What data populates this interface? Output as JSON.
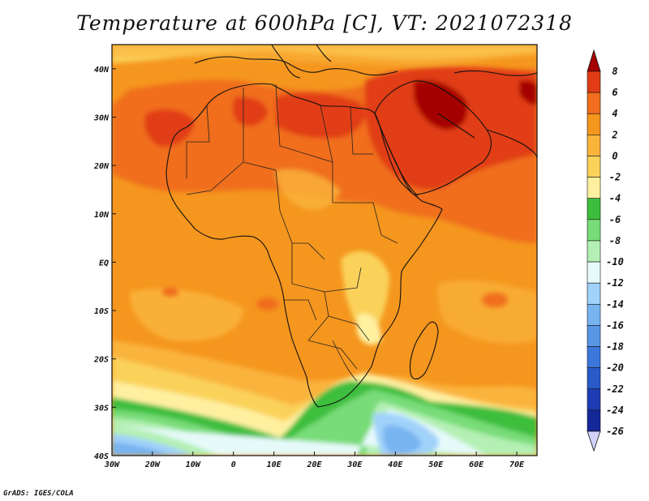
{
  "title": "Temperature at 600hPa [C], VT: 2021072318",
  "credit": "GrADS: IGES/COLA",
  "map": {
    "lon_range": [
      -30,
      75
    ],
    "lat_range": [
      -40,
      45
    ],
    "lon_ticks": [
      {
        "value": -30,
        "label": "30W"
      },
      {
        "value": -20,
        "label": "20W"
      },
      {
        "value": -10,
        "label": "10W"
      },
      {
        "value": 0,
        "label": "0"
      },
      {
        "value": 10,
        "label": "10E"
      },
      {
        "value": 20,
        "label": "20E"
      },
      {
        "value": 30,
        "label": "30E"
      },
      {
        "value": 40,
        "label": "40E"
      },
      {
        "value": 50,
        "label": "50E"
      },
      {
        "value": 60,
        "label": "60E"
      },
      {
        "value": 70,
        "label": "70E"
      }
    ],
    "lat_ticks": [
      {
        "value": 40,
        "label": "40N"
      },
      {
        "value": 30,
        "label": "30N"
      },
      {
        "value": 20,
        "label": "20N"
      },
      {
        "value": 10,
        "label": "10N"
      },
      {
        "value": 0,
        "label": "EQ"
      },
      {
        "value": -10,
        "label": "10S"
      },
      {
        "value": -20,
        "label": "20S"
      },
      {
        "value": -30,
        "label": "30S"
      },
      {
        "value": -40,
        "label": "40S"
      }
    ]
  },
  "colorbar": {
    "levels": [
      {
        "label": "8",
        "color": "#a50000"
      },
      {
        "label": "6",
        "color": "#e13c14"
      },
      {
        "label": "4",
        "color": "#f06e1e"
      },
      {
        "label": "2",
        "color": "#f5961e"
      },
      {
        "label": "0",
        "color": "#fab43c"
      },
      {
        "label": "-2",
        "color": "#fad25a"
      },
      {
        "label": "-4",
        "color": "#fff0a0"
      },
      {
        "label": "-6",
        "color": "#3cbe3c"
      },
      {
        "label": "-8",
        "color": "#78dc78"
      },
      {
        "label": "-10",
        "color": "#b4f0b4"
      },
      {
        "label": "-12",
        "color": "#e6fafa"
      },
      {
        "label": "-14",
        "color": "#a0d2fa"
      },
      {
        "label": "-16",
        "color": "#78b4f0"
      },
      {
        "label": "-18",
        "color": "#5a96e6"
      },
      {
        "label": "-20",
        "color": "#3c78dc"
      },
      {
        "label": "-22",
        "color": "#285ac8"
      },
      {
        "label": "-24",
        "color": "#1e3cb4"
      },
      {
        "label": "-26",
        "color": "#14289a"
      }
    ],
    "overflow_low_color": "#d2d2fa",
    "underflow_high_color": "#a50000"
  }
}
